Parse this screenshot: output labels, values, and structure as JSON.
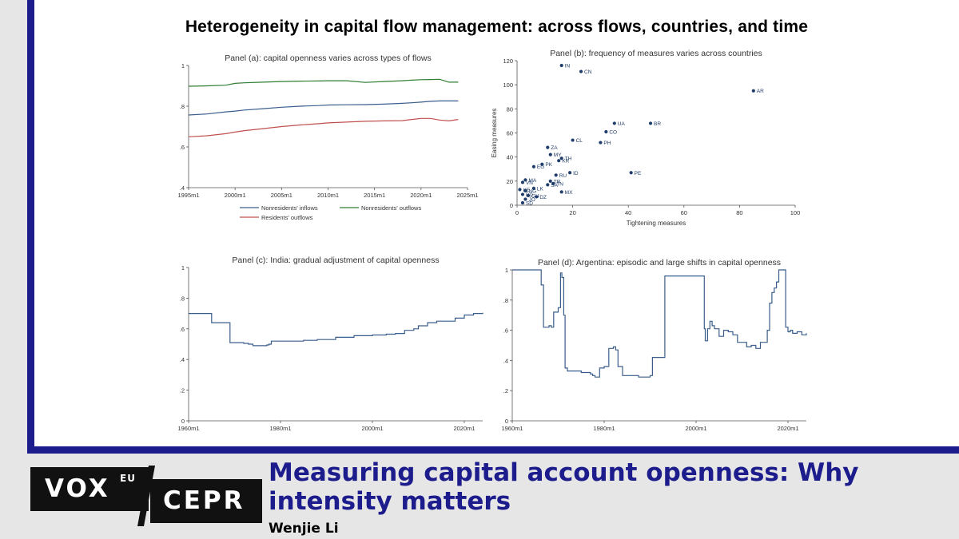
{
  "figure_title": "Heterogeneity in capital flow management: across flows, countries, and time",
  "article": {
    "title": "Measuring capital account openness: Why intensity matters",
    "author": "Wenjie Li"
  },
  "brand": {
    "vox": "VOX",
    "eu": "EU",
    "cepr": "CEPR"
  },
  "colors": {
    "frame": "#1c1c8c",
    "inflows": "#3a5e8c",
    "outflows_nonres": "#2e7d32",
    "outflows_res": "#c0504d",
    "scatter": "#1f3d6b",
    "line": "#3a5e8c"
  },
  "chart_data": [
    {
      "type": "line",
      "title": "Panel (a): capital openness varies across types of flows",
      "xlabel": "",
      "ylabel": "",
      "x_ticks": [
        "1995m1",
        "2000m1",
        "2005m1",
        "2010m1",
        "2015m1",
        "2020m1",
        "2025m1"
      ],
      "y_ticks": [
        ".4",
        ".6",
        ".8",
        "1"
      ],
      "xlim": [
        1995,
        2025
      ],
      "ylim": [
        0.4,
        1
      ],
      "grid": false,
      "legend": "bottom",
      "x": [
        1995,
        1997,
        1999,
        2000,
        2001,
        2003,
        2005,
        2007,
        2009,
        2010,
        2012,
        2014,
        2016,
        2018,
        2019,
        2020,
        2021,
        2022,
        2023,
        2024
      ],
      "series": [
        {
          "name": "Nonresidents' inflows",
          "color": "#3a5e8c",
          "values": [
            0.757,
            0.762,
            0.772,
            0.776,
            0.781,
            0.788,
            0.795,
            0.8,
            0.803,
            0.806,
            0.807,
            0.808,
            0.81,
            0.814,
            0.817,
            0.82,
            0.824,
            0.826,
            0.826,
            0.826
          ]
        },
        {
          "name": "Nonresidents' outflows",
          "color": "#2e7d32",
          "values": [
            0.898,
            0.9,
            0.903,
            0.912,
            0.915,
            0.918,
            0.921,
            0.923,
            0.924,
            0.925,
            0.925,
            0.917,
            0.921,
            0.925,
            0.928,
            0.93,
            0.931,
            0.932,
            0.918,
            0.918
          ]
        },
        {
          "name": "Residents' outflows",
          "color": "#c0504d",
          "values": [
            0.65,
            0.655,
            0.665,
            0.673,
            0.68,
            0.69,
            0.7,
            0.708,
            0.714,
            0.718,
            0.722,
            0.726,
            0.728,
            0.729,
            0.735,
            0.74,
            0.74,
            0.732,
            0.728,
            0.735
          ]
        }
      ]
    },
    {
      "type": "scatter",
      "title": "Panel (b): frequency of measures varies across countries",
      "xlabel": "Tightening measures",
      "ylabel": "Easing measures",
      "x_ticks": [
        "0",
        "20",
        "40",
        "60",
        "80",
        "100"
      ],
      "y_ticks": [
        "0",
        "20",
        "40",
        "60",
        "80",
        "100",
        "120"
      ],
      "xlim": [
        0,
        100
      ],
      "ylim": [
        0,
        120
      ],
      "grid": false,
      "points": [
        {
          "label": "IN",
          "x": 16,
          "y": 116
        },
        {
          "label": "CN",
          "x": 23,
          "y": 111
        },
        {
          "label": "AR",
          "x": 85,
          "y": 95
        },
        {
          "label": "UA",
          "x": 35,
          "y": 68
        },
        {
          "label": "BR",
          "x": 48,
          "y": 68
        },
        {
          "label": "CO",
          "x": 32,
          "y": 61
        },
        {
          "label": "CL",
          "x": 20,
          "y": 54
        },
        {
          "label": "PH",
          "x": 30,
          "y": 52
        },
        {
          "label": "ZA",
          "x": 11,
          "y": 48
        },
        {
          "label": "MY",
          "x": 12,
          "y": 42
        },
        {
          "label": "TH",
          "x": 16,
          "y": 39
        },
        {
          "label": "KR",
          "x": 15,
          "y": 37
        },
        {
          "label": "PK",
          "x": 9,
          "y": 34
        },
        {
          "label": "EG",
          "x": 6,
          "y": 32
        },
        {
          "label": "PE",
          "x": 41,
          "y": 27
        },
        {
          "label": "ID",
          "x": 19,
          "y": 27
        },
        {
          "label": "RU",
          "x": 14,
          "y": 25
        },
        {
          "label": "TR",
          "x": 12,
          "y": 20
        },
        {
          "label": "MA",
          "x": 3,
          "y": 21
        },
        {
          "label": "VN",
          "x": 2,
          "y": 19
        },
        {
          "label": "TN",
          "x": 13,
          "y": 18
        },
        {
          "label": "SA",
          "x": 11,
          "y": 17
        },
        {
          "label": "MX",
          "x": 16,
          "y": 11
        },
        {
          "label": "LK",
          "x": 6,
          "y": 14
        },
        {
          "label": "KE",
          "x": 1,
          "y": 13
        },
        {
          "label": "NG",
          "x": 3,
          "y": 12
        },
        {
          "label": "DZ",
          "x": 7,
          "y": 7
        },
        {
          "label": "BD",
          "x": 2,
          "y": 9
        },
        {
          "label": "GH",
          "x": 4,
          "y": 8
        },
        {
          "label": "JO",
          "x": 3,
          "y": 5
        },
        {
          "label": "SD",
          "x": 2,
          "y": 2
        }
      ]
    },
    {
      "type": "line",
      "title": "Panel (c): India: gradual adjustment of capital openness",
      "xlabel": "",
      "ylabel": "",
      "x_ticks": [
        "1960m1",
        "1980m1",
        "2000m1",
        "2020m1"
      ],
      "y_ticks": [
        "0",
        ".2",
        ".4",
        ".6",
        ".8",
        "1"
      ],
      "xlim": [
        1960,
        2024
      ],
      "ylim": [
        0,
        1
      ],
      "grid": false,
      "series": [
        {
          "name": "",
          "color": "#3a5e8c",
          "x": [
            1960,
            1965,
            1965,
            1969,
            1969,
            1972,
            1973,
            1974,
            1976,
            1977,
            1977.5,
            1978,
            1980,
            1985,
            1988,
            1992,
            1996,
            2000,
            2003,
            2005,
            2007,
            2009,
            2010,
            2012,
            2014,
            2016,
            2018,
            2020,
            2022,
            2024
          ],
          "values": [
            0.7,
            0.7,
            0.64,
            0.64,
            0.51,
            0.505,
            0.5,
            0.49,
            0.49,
            0.495,
            0.5,
            0.52,
            0.52,
            0.525,
            0.53,
            0.545,
            0.555,
            0.56,
            0.565,
            0.57,
            0.59,
            0.6,
            0.62,
            0.64,
            0.65,
            0.65,
            0.67,
            0.69,
            0.7,
            0.705
          ]
        }
      ]
    },
    {
      "type": "line",
      "title": "Panel (d): Argentina: episodic and large shifts in capital openness",
      "xlabel": "",
      "ylabel": "",
      "x_ticks": [
        "1960m1",
        "1980m1",
        "2000m1",
        "2020m1"
      ],
      "y_ticks": [
        "0",
        ".2",
        ".4",
        ".6",
        ".8",
        "1"
      ],
      "xlim": [
        1960,
        2024
      ],
      "ylim": [
        0,
        1
      ],
      "grid": false,
      "series": [
        {
          "name": "",
          "color": "#3a5e8c",
          "x": [
            1960,
            1966,
            1966.3,
            1966.8,
            1967.5,
            1968,
            1968.5,
            1969,
            1970,
            1970.5,
            1970.8,
            1971.2,
            1971.5,
            1972,
            1975,
            1977,
            1977.5,
            1978,
            1979,
            1980,
            1981,
            1982,
            1982.5,
            1983,
            1984,
            1987,
            1987.5,
            1990,
            1990.5,
            1993,
            1993.2,
            2001.5,
            2001.8,
            2002,
            2002.5,
            2003,
            2003.5,
            2004,
            2005,
            2006,
            2007,
            2008,
            2009,
            2010,
            2011,
            2012,
            2013,
            2014,
            2015.5,
            2016,
            2016.5,
            2017,
            2017.5,
            2018,
            2018.5,
            2019,
            2019.5,
            2020,
            2020.5,
            2021,
            2022,
            2023,
            2024
          ],
          "values": [
            1,
            1,
            0.9,
            0.62,
            0.62,
            0.63,
            0.62,
            0.72,
            0.75,
            0.98,
            0.95,
            0.7,
            0.35,
            0.33,
            0.32,
            0.31,
            0.3,
            0.29,
            0.35,
            0.36,
            0.48,
            0.49,
            0.47,
            0.36,
            0.3,
            0.3,
            0.29,
            0.3,
            0.42,
            0.42,
            0.96,
            0.96,
            0.61,
            0.53,
            0.61,
            0.66,
            0.63,
            0.61,
            0.56,
            0.6,
            0.59,
            0.57,
            0.52,
            0.52,
            0.49,
            0.5,
            0.48,
            0.52,
            0.6,
            0.78,
            0.85,
            0.88,
            0.92,
            1,
            1,
            1,
            0.62,
            0.59,
            0.6,
            0.58,
            0.59,
            0.57,
            0.58
          ]
        }
      ]
    }
  ]
}
